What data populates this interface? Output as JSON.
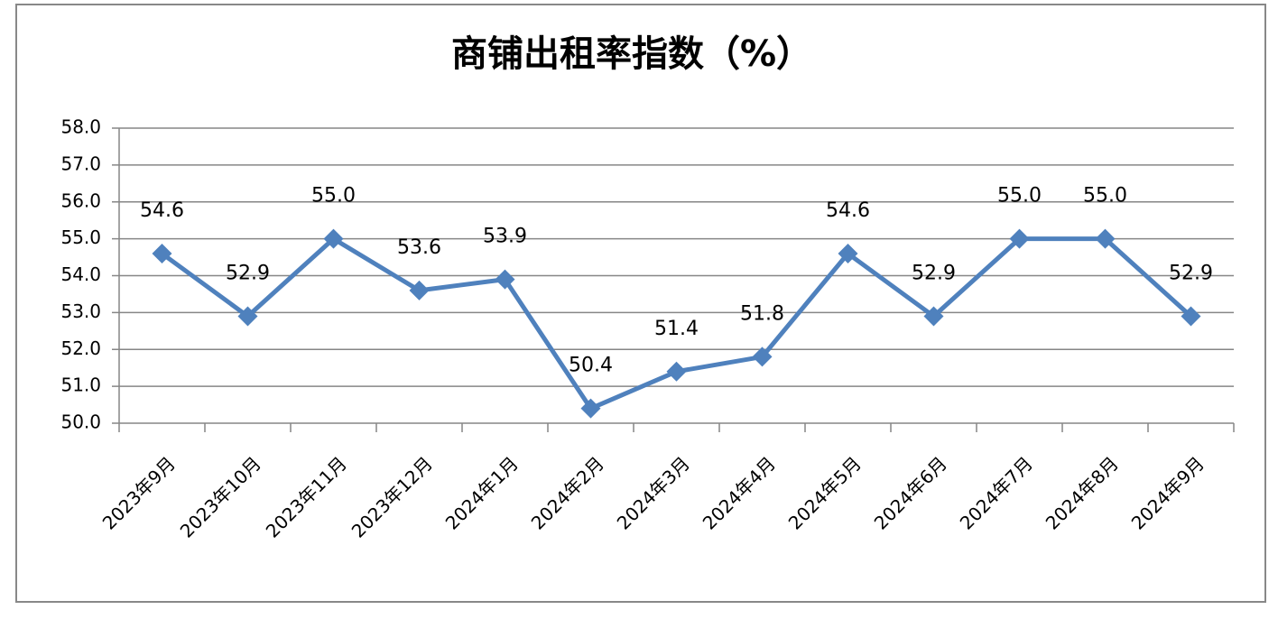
{
  "chart_data": {
    "type": "line",
    "title": "商铺出租率指数（%）",
    "categories": [
      "2023年9月",
      "2023年10月",
      "2023年11月",
      "2023年12月",
      "2024年1月",
      "2024年2月",
      "2024年3月",
      "2024年4月",
      "2024年5月",
      "2024年6月",
      "2024年7月",
      "2024年8月",
      "2024年9月"
    ],
    "values": [
      54.6,
      52.9,
      55.0,
      53.6,
      53.9,
      50.4,
      51.4,
      51.8,
      54.6,
      52.9,
      55.0,
      55.0,
      52.9
    ],
    "value_labels": [
      "54.6",
      "52.9",
      "55.0",
      "53.6",
      "53.9",
      "50.4",
      "51.4",
      "51.8",
      "54.6",
      "52.9",
      "55.0",
      "55.0",
      "52.9"
    ],
    "color": "#4f81bd",
    "ylim": [
      50,
      58
    ],
    "yticks": [
      {
        "value": 50,
        "label": "50.0"
      },
      {
        "value": 51,
        "label": "51.0"
      },
      {
        "value": 52,
        "label": "52.0"
      },
      {
        "value": 53,
        "label": "53.0"
      },
      {
        "value": 54,
        "label": "54.0"
      },
      {
        "value": 55,
        "label": "55.0"
      },
      {
        "value": 56,
        "label": "56.0"
      },
      {
        "value": 57,
        "label": "57.0"
      },
      {
        "value": 58,
        "label": "58.0"
      }
    ],
    "grid": true
  }
}
